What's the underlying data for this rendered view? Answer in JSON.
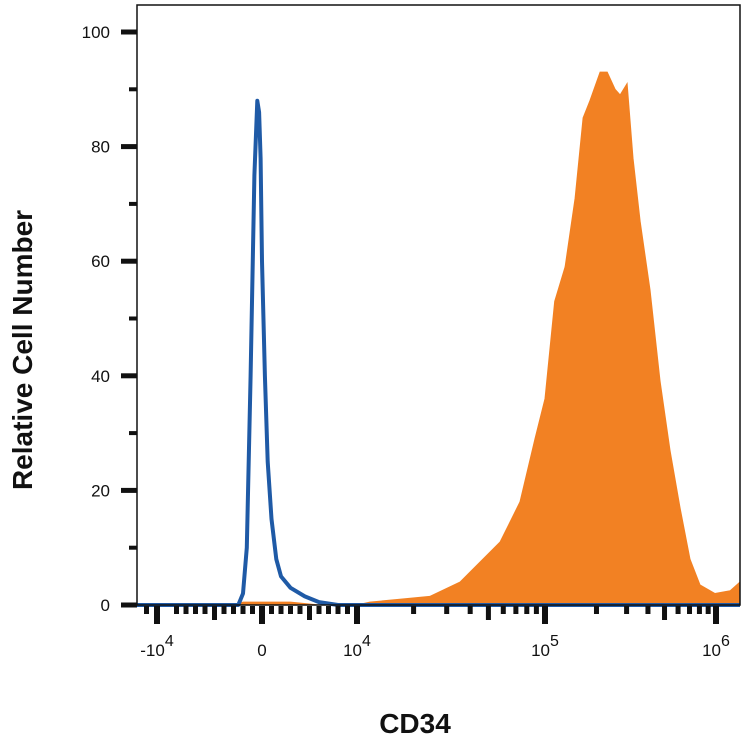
{
  "chart_data": {
    "type": "area",
    "title": "",
    "xlabel": "CD34",
    "ylabel": "Relative Cell Number",
    "x_scale": "biexponential (linear near 0, log above 10^4)",
    "xlim": [
      -15000,
      1400000
    ],
    "ylim": [
      0,
      100
    ],
    "grid": false,
    "legend": "none",
    "x_ticks": [
      {
        "value": -10000,
        "base": "-10",
        "exp": "4"
      },
      {
        "value": 0,
        "base": "0",
        "exp": ""
      },
      {
        "value": 10000,
        "base": "10",
        "exp": "4"
      },
      {
        "value": 100000,
        "base": "10",
        "exp": "5"
      },
      {
        "value": 1000000,
        "base": "10",
        "exp": "6"
      }
    ],
    "y_ticks": [
      {
        "value": 0,
        "label": "0"
      },
      {
        "value": 20,
        "label": "20"
      },
      {
        "value": 40,
        "label": "40"
      },
      {
        "value": 60,
        "label": "60"
      },
      {
        "value": 80,
        "label": "80"
      },
      {
        "value": 100,
        "label": "100"
      }
    ],
    "series": [
      {
        "style": "filled",
        "color": "#f28123",
        "points": [
          [
            -15000,
            0
          ],
          [
            -3000,
            0
          ],
          [
            -2000,
            0.5
          ],
          [
            3000,
            0.5
          ],
          [
            6000,
            0
          ],
          [
            10000,
            0
          ],
          [
            11700,
            0.5
          ],
          [
            16900,
            1
          ],
          [
            24400,
            1.5
          ],
          [
            35300,
            4
          ],
          [
            57700,
            11
          ],
          [
            73600,
            18
          ],
          [
            88500,
            29
          ],
          [
            100000,
            36
          ],
          [
            114000,
            53
          ],
          [
            131000,
            59
          ],
          [
            150000,
            71
          ],
          [
            167000,
            85
          ],
          [
            183000,
            88
          ],
          [
            210000,
            93
          ],
          [
            231000,
            93
          ],
          [
            257000,
            90
          ],
          [
            275000,
            89
          ],
          [
            302000,
            91
          ],
          [
            327000,
            78
          ],
          [
            360000,
            67
          ],
          [
            411000,
            55
          ],
          [
            471000,
            39
          ],
          [
            538000,
            27
          ],
          [
            616000,
            17
          ],
          [
            705000,
            8
          ],
          [
            806000,
            3.5
          ],
          [
            987000,
            2
          ],
          [
            1210000,
            2.5
          ],
          [
            1380000,
            4
          ]
        ]
      },
      {
        "style": "line",
        "color": "#1f5aa6",
        "points": [
          [
            -15000,
            0
          ],
          [
            -2500,
            0
          ],
          [
            -2000,
            2
          ],
          [
            -1600,
            10
          ],
          [
            -1200,
            40
          ],
          [
            -800,
            75
          ],
          [
            -500,
            88
          ],
          [
            -300,
            86
          ],
          [
            -150,
            78
          ],
          [
            0,
            60
          ],
          [
            300,
            40
          ],
          [
            600,
            25
          ],
          [
            1000,
            15
          ],
          [
            1500,
            8
          ],
          [
            2000,
            5
          ],
          [
            3000,
            3
          ],
          [
            4500,
            1.5
          ],
          [
            6000,
            0.5
          ],
          [
            8000,
            0
          ],
          [
            1400000,
            0
          ]
        ]
      }
    ]
  }
}
